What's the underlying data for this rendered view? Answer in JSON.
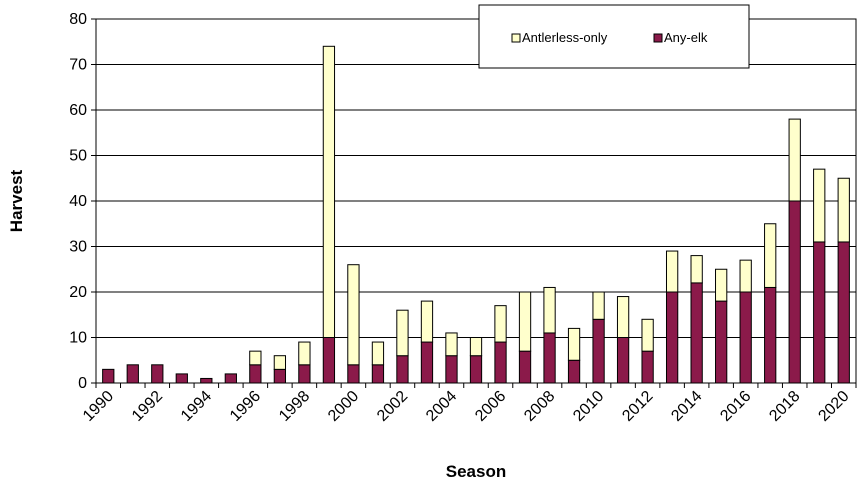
{
  "chart_data": {
    "type": "bar",
    "stacked": true,
    "xlabel": "Season",
    "ylabel": "Harvest",
    "ylim": [
      0,
      80
    ],
    "yticks": [
      0,
      10,
      20,
      30,
      40,
      50,
      60,
      70,
      80
    ],
    "grid": true,
    "legend_position": "top-right",
    "categories": [
      "1990",
      "1991",
      "1992",
      "1993",
      "1994",
      "1995",
      "1996",
      "1997",
      "1998",
      "1999",
      "2000",
      "2001",
      "2002",
      "2003",
      "2004",
      "2005",
      "2006",
      "2007",
      "2008",
      "2009",
      "2010",
      "2011",
      "2012",
      "2013",
      "2014",
      "2015",
      "2016",
      "2017",
      "2018",
      "2019",
      "2020"
    ],
    "xtick_labels": [
      "1990",
      "1992",
      "1994",
      "1996",
      "1998",
      "2000",
      "2002",
      "2004",
      "2006",
      "2008",
      "2010",
      "2012",
      "2014",
      "2016",
      "2018",
      "2020"
    ],
    "series": [
      {
        "name": "Any-elk",
        "color": "#8b1a4a",
        "values": [
          3,
          4,
          4,
          2,
          1,
          2,
          4,
          3,
          4,
          10,
          4,
          4,
          6,
          9,
          6,
          6,
          9,
          7,
          11,
          5,
          14,
          10,
          7,
          20,
          22,
          18,
          20,
          21,
          40,
          31,
          31
        ]
      },
      {
        "name": "Antlerless-only",
        "color": "#ffffcc",
        "values": [
          0,
          0,
          0,
          0,
          0,
          0,
          3,
          3,
          5,
          64,
          22,
          5,
          10,
          9,
          5,
          4,
          8,
          13,
          10,
          7,
          6,
          9,
          7,
          9,
          6,
          7,
          7,
          14,
          18,
          16,
          14
        ]
      }
    ],
    "legend_order": [
      "Antlerless-only",
      "Any-elk"
    ]
  }
}
